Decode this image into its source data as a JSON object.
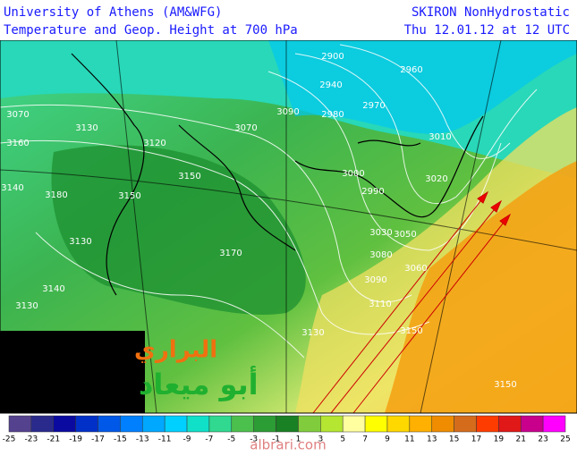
{
  "header": {
    "left_title": "University of Athens (AM&WFG)",
    "left_subtitle": "Temperature and Geop. Height at  700 hPa",
    "right_title": "SKIRON NonHydrostatic",
    "right_subtitle": "Thu 12.01.12 at 12 UTC"
  },
  "map": {
    "contour_labels": [
      2900,
      2940,
      2960,
      2970,
      2980,
      3010,
      3070,
      3130,
      3120,
      3070,
      3090,
      3150,
      3150,
      3180,
      3140,
      3130,
      3170,
      3140,
      3130,
      3110,
      3090,
      3080,
      3060,
      3050,
      3030,
      3000,
      2990,
      3020,
      3130,
      3150,
      3150,
      3160
    ]
  },
  "legend": {
    "labels": [
      -25,
      -23,
      -21,
      -19,
      -17,
      -15,
      -13,
      -11,
      -9,
      -7,
      -5,
      -3,
      -1,
      1,
      3,
      5,
      7,
      9,
      11,
      13,
      15,
      17,
      19,
      21,
      23,
      25
    ],
    "colors": [
      "#54428f",
      "#2a2a8c",
      "#0a0aa0",
      "#0030c8",
      "#0058e8",
      "#0080ff",
      "#00a8ff",
      "#00d0ff",
      "#10e0c8",
      "#30d890",
      "#4cc04c",
      "#2c9c34",
      "#1a8024",
      "#80cc3c",
      "#b4e632",
      "#ffffa0",
      "#ffff00",
      "#ffd800",
      "#ffb000",
      "#f08c00",
      "#d46c1c",
      "#ff3c00",
      "#e01818",
      "#c8008c",
      "#ff00ff"
    ]
  },
  "logo": {
    "line1": "البراري",
    "line2": "أبو ميعاد"
  },
  "watermark": "albrari.com"
}
